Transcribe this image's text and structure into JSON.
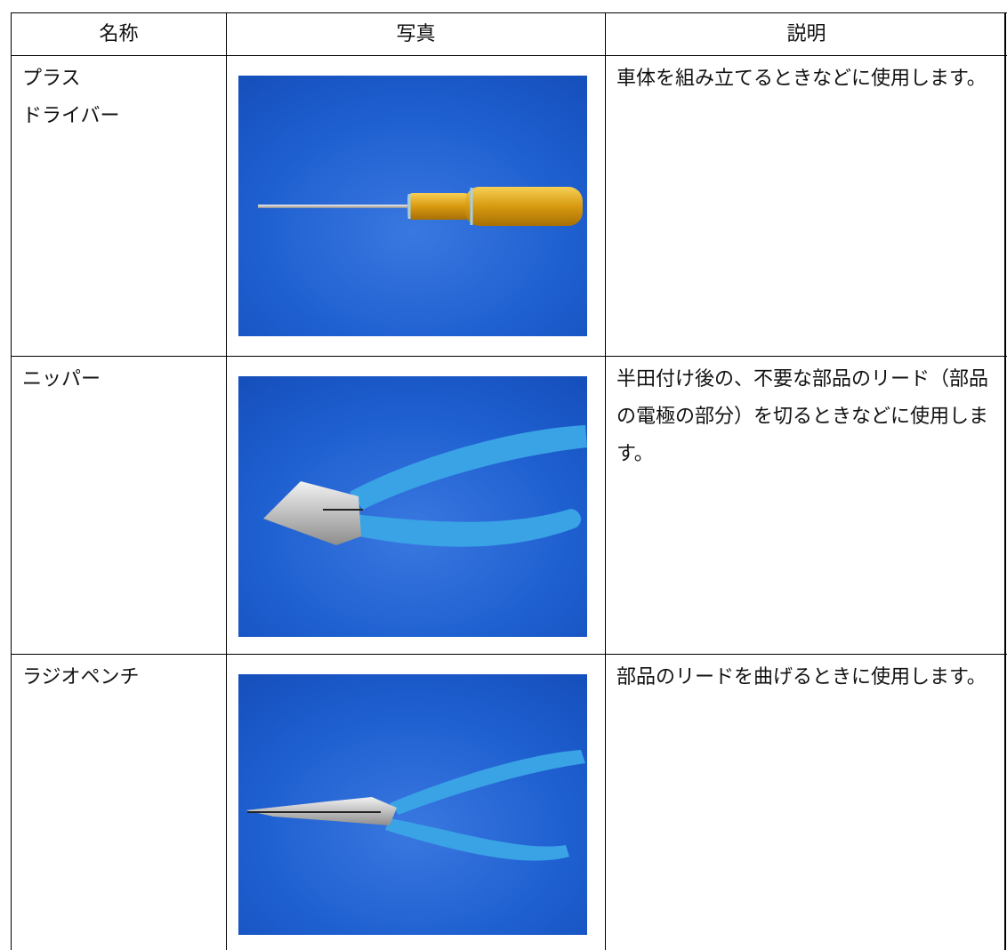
{
  "header": [
    "名称",
    "写真",
    "説明"
  ],
  "rows": [
    {
      "name": [
        "プラス",
        "ドライバー"
      ],
      "description": "車体を組み立てるときなどに使用します。"
    },
    {
      "name": [
        "ニッパー"
      ],
      "description": "半田付け後の、不要な部品のリード（部品の電極の部分）を切るときなどに使用します。"
    },
    {
      "name": [
        "ラジオペンチ"
      ],
      "description": "部品のリードを曲げるときに使用します。"
    }
  ]
}
